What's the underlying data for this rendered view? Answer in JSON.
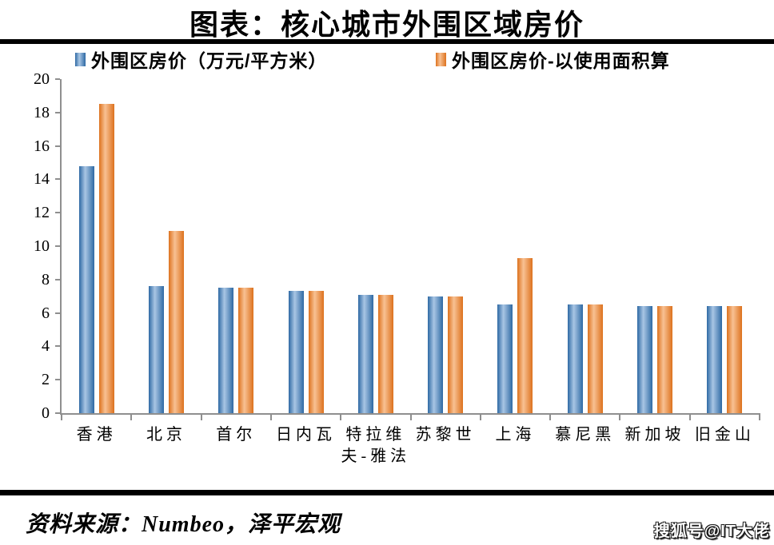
{
  "title": "图表：核心城市外围区域房价",
  "legend": {
    "items": [
      {
        "label": "外围区房价（万元/平方米）",
        "color": "#2E69A4",
        "highlight": "#A9C6E4"
      },
      {
        "label": "外围区房价-以使用面积算",
        "color": "#DD721E",
        "highlight": "#F8C193"
      }
    ]
  },
  "footer": {
    "source": "资料来源：Numbeo，泽平宏观",
    "watermark": "搜狐号@IT大佬"
  },
  "colors": {
    "axis": "#8f8f8f",
    "rule": "#000000",
    "series1_base": "#2E69A4",
    "series1_highlight": "#A9C6E4",
    "series2_base": "#DD721E",
    "series2_highlight": "#F8C193"
  },
  "chart_data": {
    "type": "bar",
    "title": "图表：核心城市外围区域房价",
    "categories": [
      "香港",
      "北京",
      "首尔",
      "日内瓦",
      "特拉维\n夫-雅法",
      "苏黎世",
      "上海",
      "慕尼黑",
      "新加坡",
      "旧金山"
    ],
    "series": [
      {
        "name": "外围区房价（万元/平方米）",
        "color": "#2E69A4",
        "highlight": "#A9C6E4",
        "values": [
          14.8,
          7.6,
          7.5,
          7.3,
          7.1,
          7.0,
          6.5,
          6.5,
          6.4,
          6.4
        ]
      },
      {
        "name": "外围区房价-以使用面积算",
        "color": "#DD721E",
        "highlight": "#F8C193",
        "values": [
          18.5,
          10.9,
          7.5,
          7.3,
          7.1,
          7.0,
          9.3,
          6.5,
          6.4,
          6.4
        ]
      }
    ],
    "xlabel": "",
    "ylabel": "",
    "ylim": [
      0,
      20
    ],
    "ytick_step": 2,
    "yticks": [
      0,
      2,
      4,
      6,
      8,
      10,
      12,
      14,
      16,
      18,
      20
    ],
    "grid": false,
    "legend_position": "top"
  }
}
